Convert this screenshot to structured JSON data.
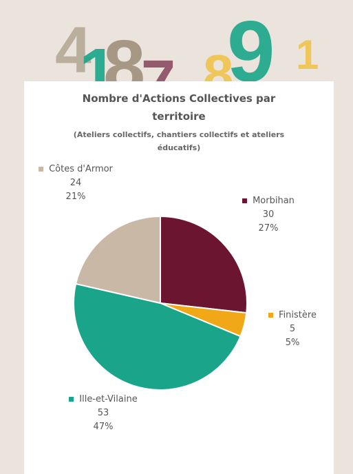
{
  "decoration": [
    {
      "text": "4",
      "color": "#b5a796"
    },
    {
      "text": "1",
      "color": "#1aa58a"
    },
    {
      "text": "8",
      "color": "#a08e7b"
    },
    {
      "text": "7",
      "color": "#8b4a62"
    },
    {
      "text": "8",
      "color": "#efc24a"
    },
    {
      "text": "9",
      "color": "#1aa58a"
    },
    {
      "text": "1",
      "color": "#efc24a"
    }
  ],
  "chart_data": {
    "type": "pie",
    "title": "Nombre d'Actions Collectives par territoire",
    "subtitle": "(Ateliers collectifs, chantiers collectifs et ateliers éducatifs)",
    "categories": [
      "Morbihan",
      "Finistère",
      "Ille-et-Vilaine",
      "Côtes d'Armor"
    ],
    "values": [
      30,
      5,
      53,
      24
    ],
    "percent_labels": [
      "27%",
      "5%",
      "47%",
      "21%"
    ],
    "colors": [
      "#6b1530",
      "#f0a818",
      "#1aa58a",
      "#c9b8a6"
    ]
  }
}
